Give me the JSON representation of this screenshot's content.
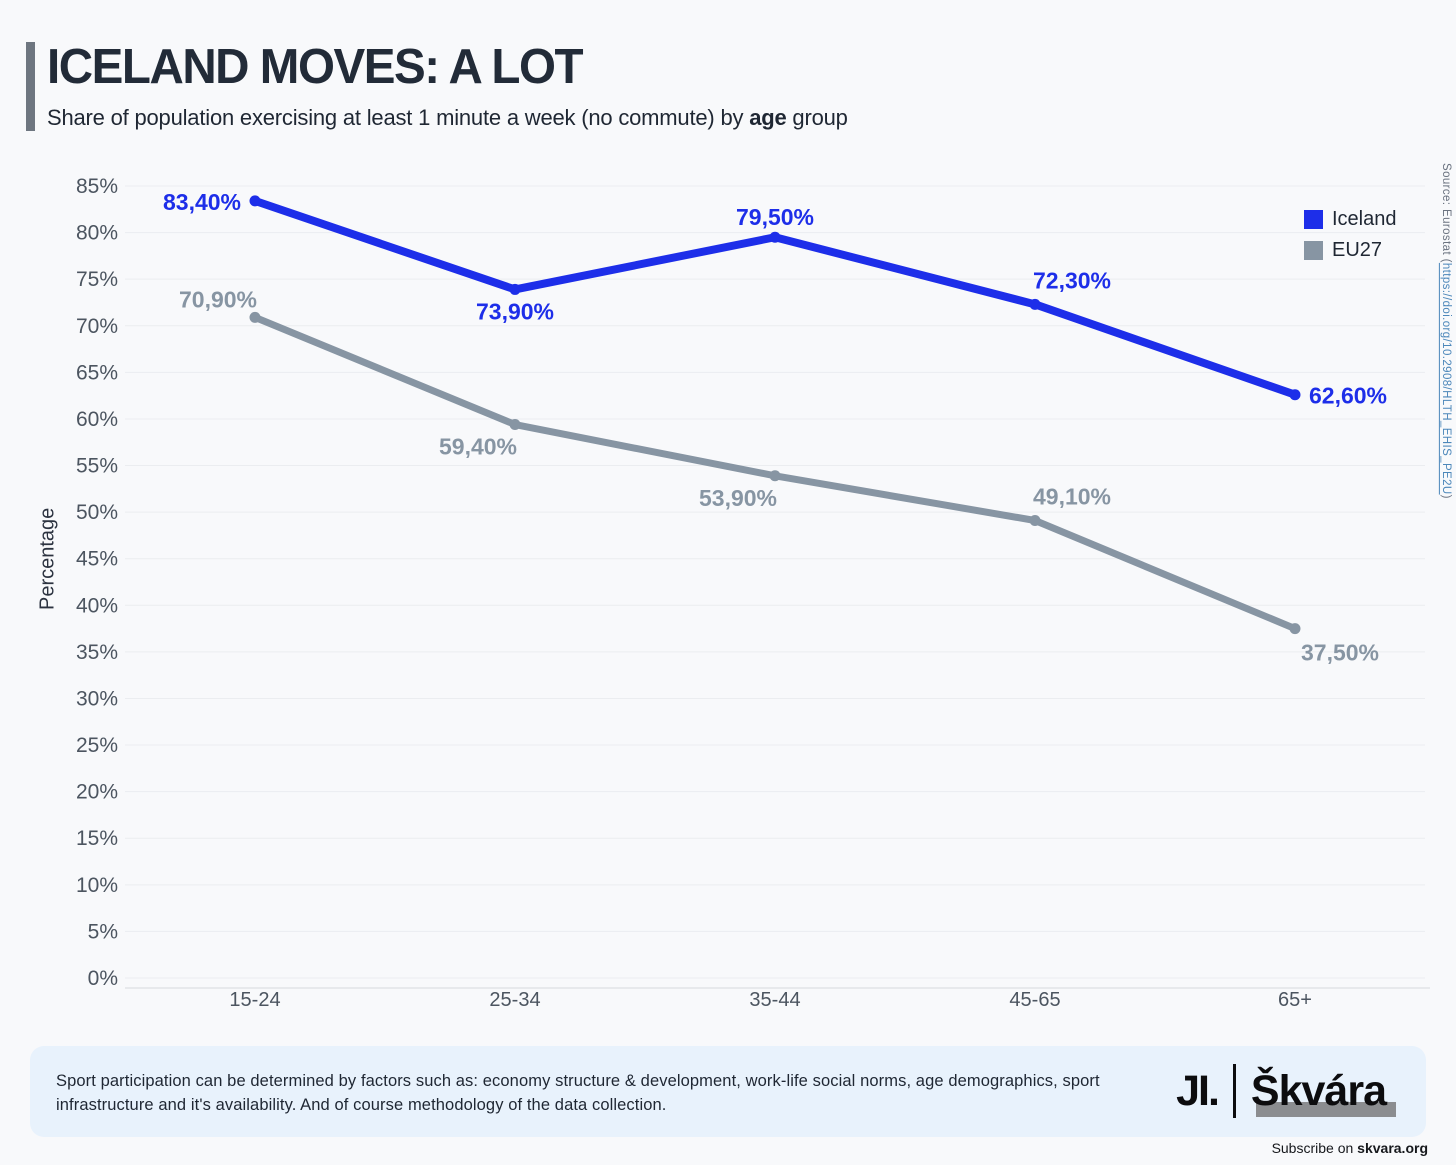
{
  "header": {
    "title": "ICELAND MOVES: A LOT",
    "subtitle_prefix": "Share of population exercising at least 1 minute a week (no commute) by ",
    "subtitle_bold": "age",
    "subtitle_suffix": " group"
  },
  "source": {
    "prefix": "Source: Eurostat (",
    "link": "https://doi.org/10.2908/HLTH_EHIS_PE2U",
    "suffix": ")"
  },
  "legend": [
    {
      "label": "Iceland",
      "color": "#1d2ee9"
    },
    {
      "label": "EU27",
      "color": "#8795a3"
    }
  ],
  "chart_data": {
    "type": "line",
    "categories": [
      "15-24",
      "25-34",
      "35-44",
      "45-65",
      "65+"
    ],
    "series": [
      {
        "name": "Iceland",
        "color": "#1d2ee9",
        "values": [
          83.4,
          73.9,
          79.5,
          72.3,
          62.6
        ],
        "labels": [
          "83,40%",
          "73,90%",
          "79,50%",
          "72,30%",
          "62,60%"
        ],
        "label_positions": [
          "left",
          "below",
          "above",
          "above-right",
          "right"
        ],
        "line_width": 8
      },
      {
        "name": "EU27",
        "color": "#8795a3",
        "values": [
          70.9,
          59.4,
          53.9,
          49.1,
          37.5
        ],
        "labels": [
          "70,90%",
          "59,40%",
          "53,90%",
          "49,10%",
          "37,50%"
        ],
        "label_positions": [
          "above-left",
          "below-left",
          "below-left",
          "above-right",
          "below-right"
        ],
        "line_width": 7
      }
    ],
    "title": "ICELAND MOVES: A LOT",
    "xlabel": "",
    "ylabel": "Percentage",
    "ylim": [
      0,
      85
    ],
    "ytick_step": 5,
    "ytick_suffix": "%",
    "grid": true,
    "legend_position": "top-right",
    "colors": {
      "gridline": "#ebedf0",
      "axis_line": "#e1e4e8",
      "tick_text": "#4c5560"
    }
  },
  "footer": {
    "note": "Sport participation can be determined by factors such as: economy structure & development, work-life social norms, age demographics, sport infrastructure and it's availability. And of course methodology of the data collection.",
    "logo_mark": "JI.",
    "logo_name": "Škvára",
    "subscribe_prefix": "Subscribe on ",
    "subscribe_domain": "skvara.org"
  }
}
